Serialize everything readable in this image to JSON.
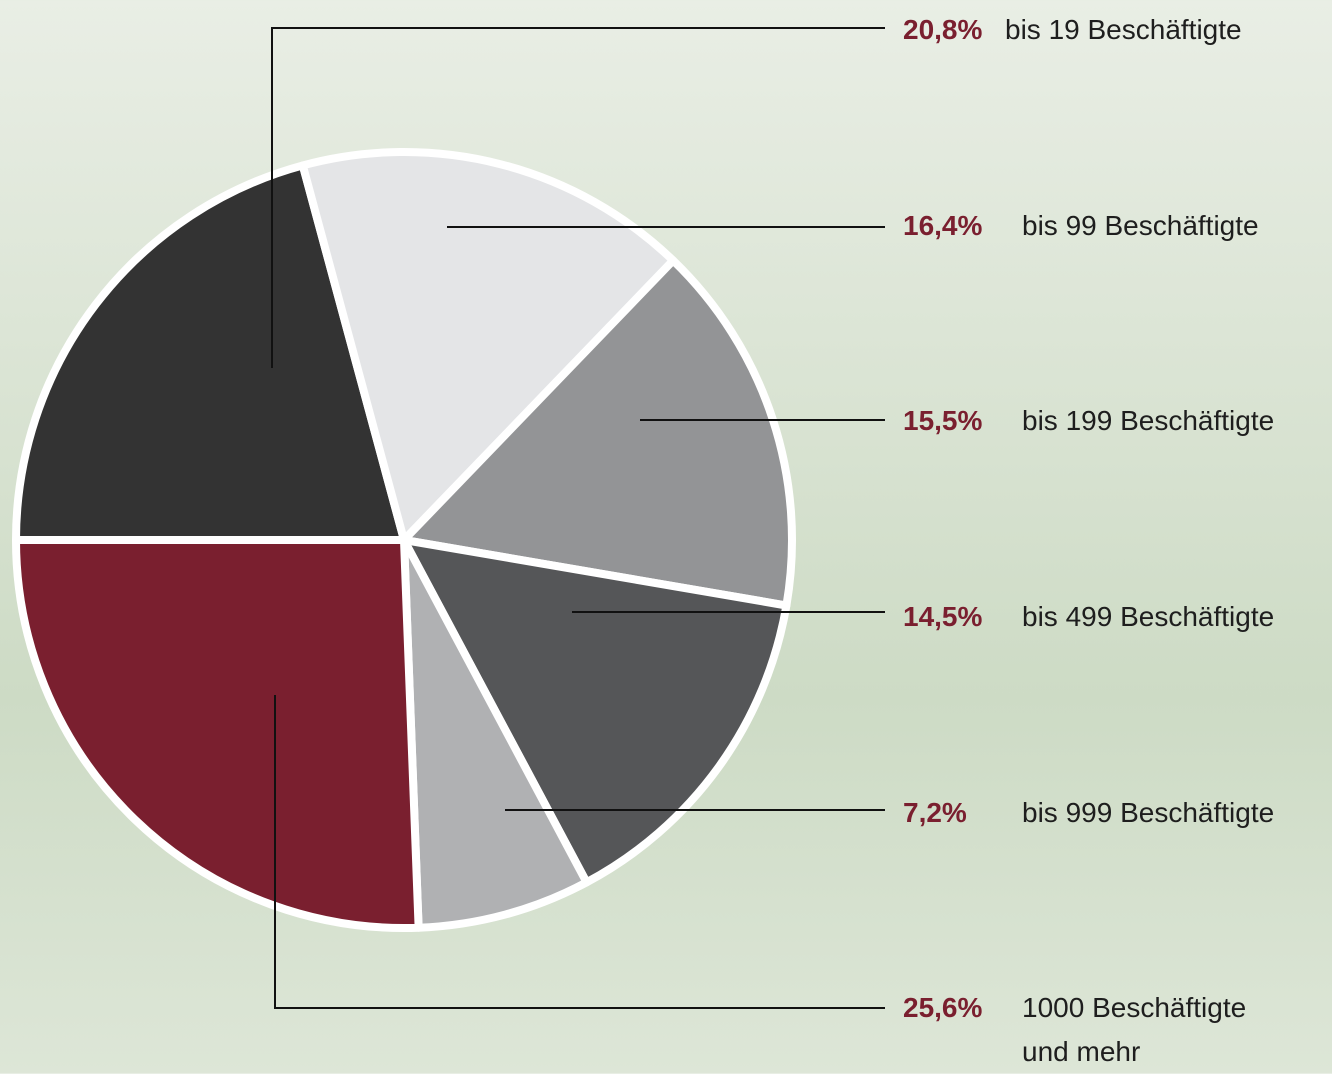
{
  "chart_data": {
    "type": "pie",
    "categories": [
      "bis 19 Beschäftigte",
      "bis 99 Beschäftigte",
      "bis 199 Beschäftigte",
      "bis 499 Beschäftigte",
      "bis 999 Beschäftigte",
      "1000 Beschäftigte\nund mehr"
    ],
    "values": [
      20.8,
      16.4,
      15.5,
      14.5,
      7.2,
      25.6
    ],
    "value_labels": [
      "20,8%",
      "16,4%",
      "15,5%",
      "14,5%",
      "7,2%",
      "25,6%"
    ],
    "colors": [
      "#333333",
      "#e4e5e7",
      "#939496",
      "#555658",
      "#b0b1b3",
      "#7a1f2f"
    ]
  }
}
